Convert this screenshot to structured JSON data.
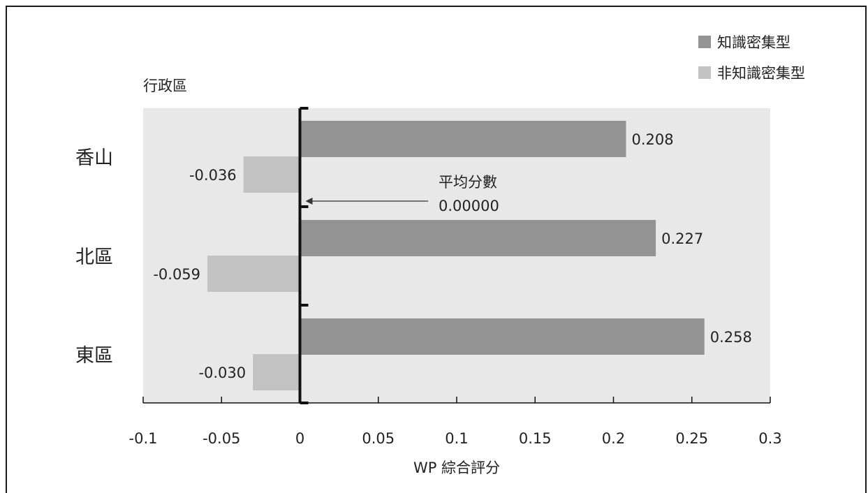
{
  "chart_data": {
    "type": "bar",
    "orientation": "horizontal",
    "categories_label": "行政區",
    "categories": [
      "香山",
      "北區",
      "東區"
    ],
    "series": [
      {
        "name": "知識密集型",
        "values": [
          0.208,
          0.227,
          0.258
        ],
        "labels": [
          "0.208",
          "0.227",
          "0.258"
        ],
        "color": "#939393"
      },
      {
        "name": "非知識密集型",
        "values": [
          -0.036,
          -0.059,
          -0.03
        ],
        "labels": [
          "-0.036",
          "-0.059",
          "-0.030"
        ],
        "color": "#c2c2c2"
      }
    ],
    "xlabel": "WP 綜合評分",
    "xlim": [
      -0.1,
      0.3
    ],
    "xticks": [
      -0.1,
      -0.05,
      0,
      0.05,
      0.1,
      0.15,
      0.2,
      0.25,
      0.3
    ],
    "xtick_labels": [
      "-0.1",
      "-0.05",
      "0",
      "0.05",
      "0.1",
      "0.15",
      "0.2",
      "0.25",
      "0.3"
    ],
    "annotation": {
      "label": "平均分數",
      "value_text": "0.00000",
      "x": 0
    },
    "legend_position": "top-right",
    "plot_background": "#e8e8e8",
    "grid": false
  }
}
